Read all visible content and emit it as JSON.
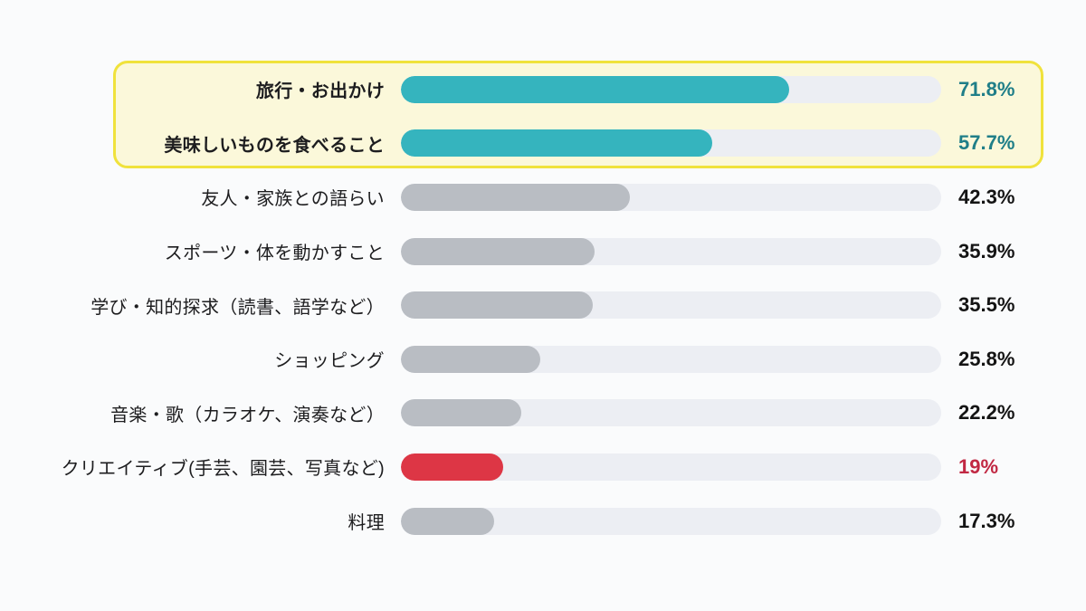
{
  "chart_data": {
    "type": "bar",
    "orientation": "horizontal",
    "title": "",
    "xlabel": "",
    "ylabel": "",
    "xlim": [
      0,
      100
    ],
    "grid": false,
    "legend": "none",
    "categories": [
      "旅行・お出かけ",
      "美味しいものを食べること",
      "友人・家族との語らい",
      "スポーツ・体を動かすこと",
      "学び・知的探求（読書、語学など）",
      "ショッピング",
      "音楽・歌（カラオケ、演奏など）",
      "クリエイティブ(手芸、園芸、写真など)",
      "料理"
    ],
    "values": [
      71.8,
      57.7,
      42.3,
      35.9,
      35.5,
      25.8,
      22.2,
      19,
      17.3
    ],
    "highlighted_categories": [
      "旅行・お出かけ",
      "美味しいものを食べること"
    ],
    "colors": {
      "highlight_bar": "#35b4be",
      "highlight_value_text": "#1f7e88",
      "default_bar": "#b9bdc3",
      "default_value_text": "#141414",
      "accent_bar": "#dd3645",
      "accent_value_text": "#c12843",
      "track": "#eceef3",
      "highlight_box_fill": "#fbf8da",
      "highlight_box_border": "#f0e23c",
      "background": "#fafbfc"
    },
    "rows": [
      {
        "label": "旅行・お出かけ",
        "percent": 71.8,
        "value_label": "71.8%",
        "bar_color": "#35b4be",
        "value_color": "#1f7e88",
        "highlighted": true
      },
      {
        "label": "美味しいものを食べること",
        "percent": 57.7,
        "value_label": "57.7%",
        "bar_color": "#35b4be",
        "value_color": "#1f7e88",
        "highlighted": true
      },
      {
        "label": "友人・家族との語らい",
        "percent": 42.3,
        "value_label": "42.3%",
        "bar_color": "#b9bdc3",
        "value_color": "#141414",
        "highlighted": false
      },
      {
        "label": "スポーツ・体を動かすこと",
        "percent": 35.9,
        "value_label": "35.9%",
        "bar_color": "#b9bdc3",
        "value_color": "#141414",
        "highlighted": false
      },
      {
        "label": "学び・知的探求（読書、語学など）",
        "percent": 35.5,
        "value_label": "35.5%",
        "bar_color": "#b9bdc3",
        "value_color": "#141414",
        "highlighted": false
      },
      {
        "label": "ショッピング",
        "percent": 25.8,
        "value_label": "25.8%",
        "bar_color": "#b9bdc3",
        "value_color": "#141414",
        "highlighted": false
      },
      {
        "label": "音楽・歌（カラオケ、演奏など）",
        "percent": 22.2,
        "value_label": "22.2%",
        "bar_color": "#b9bdc3",
        "value_color": "#141414",
        "highlighted": false
      },
      {
        "label": "クリエイティブ(手芸、園芸、写真など)",
        "percent": 19,
        "value_label": "19%",
        "bar_color": "#dd3645",
        "value_color": "#c12843",
        "highlighted": false
      },
      {
        "label": "料理",
        "percent": 17.3,
        "value_label": "17.3%",
        "bar_color": "#b9bdc3",
        "value_color": "#141414",
        "highlighted": false
      }
    ]
  }
}
